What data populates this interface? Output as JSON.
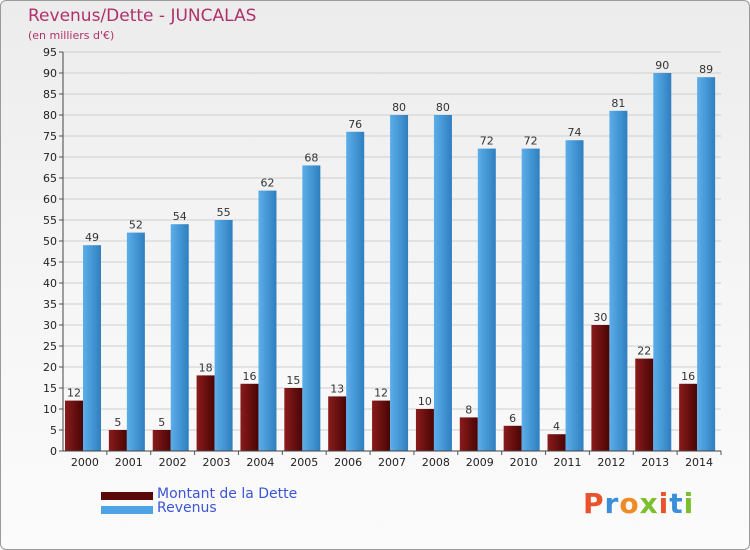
{
  "page": {
    "title": "Revenus/Dette - JUNCALAS",
    "subtitle": "(en milliers d'€)"
  },
  "logo": {
    "text": "Proxiti",
    "letter_colors": [
      "#e8532b",
      "#3a8fd8",
      "#f08a24",
      "#7bbf2f",
      "#e8532b",
      "#3a8fd8",
      "#7bbf2f"
    ]
  },
  "colors": {
    "dette_light": "#8a1b1b",
    "dette_dark": "#4a0505",
    "revenus_light": "#5caee9",
    "revenus_dark": "#2f7fc0",
    "grid": "#cfcfcf",
    "axis_text": "#222222",
    "label_text": "#333333",
    "legend_dette": "#5a0a0a",
    "legend_revenus": "#4da3e4"
  },
  "chart_data": {
    "type": "bar",
    "title": "Revenus/Dette - JUNCALAS",
    "subtitle": "(en milliers d'€)",
    "categories": [
      "2000",
      "2001",
      "2002",
      "2003",
      "2004",
      "2005",
      "2006",
      "2007",
      "2008",
      "2009",
      "2010",
      "2011",
      "2012",
      "2013",
      "2014"
    ],
    "series": [
      {
        "name": "Montant de la Dette",
        "values": [
          12,
          5,
          5,
          18,
          16,
          15,
          13,
          12,
          10,
          8,
          6,
          4,
          30,
          22,
          16
        ]
      },
      {
        "name": "Revenus",
        "values": [
          49,
          52,
          54,
          55,
          62,
          68,
          76,
          80,
          80,
          72,
          72,
          74,
          81,
          90,
          89
        ]
      }
    ],
    "ylim": [
      0,
      95
    ],
    "yticks": [
      0,
      5,
      10,
      15,
      20,
      25,
      30,
      35,
      40,
      45,
      50,
      55,
      60,
      65,
      70,
      75,
      80,
      85,
      90,
      95
    ],
    "grid": true,
    "legend_position": "bottom-left"
  }
}
